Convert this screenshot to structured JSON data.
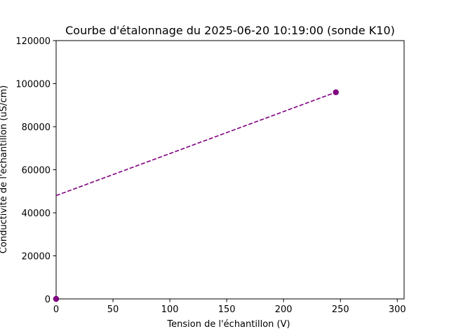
{
  "chart_data": {
    "type": "line",
    "title": "Courbe d'étalonnage du 2025-06-20 10:19:00 (sonde K10)",
    "xlabel": "Tension  de l'échantillon (V)",
    "ylabel": "Conductivité de l'échantillon (uS/cm)",
    "xlim": [
      0,
      306
    ],
    "ylim": [
      0,
      120000
    ],
    "xticks": [
      0,
      50,
      100,
      150,
      200,
      250,
      300
    ],
    "yticks": [
      0,
      20000,
      40000,
      60000,
      80000,
      100000,
      120000
    ],
    "grid": false,
    "legend": null,
    "series": [
      {
        "style": "markers",
        "color": "#800080",
        "x": [
          0,
          246
        ],
        "y": [
          0,
          96000
        ]
      },
      {
        "style": "dashed-line",
        "color": "#800080",
        "x": [
          0,
          246
        ],
        "y": [
          48000,
          96000
        ]
      }
    ]
  }
}
